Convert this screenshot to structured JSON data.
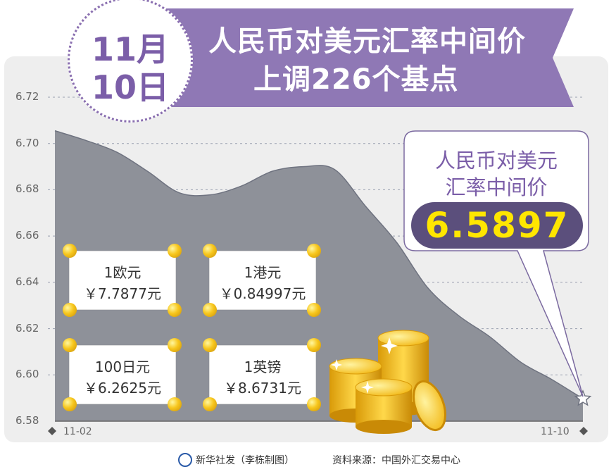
{
  "header": {
    "date_line1": "11月",
    "date_line2": "10日",
    "title_line1": "人民币对美元汇率中间价",
    "title_line2": "上调226个基点",
    "banner_color": "#8f78b5"
  },
  "callout": {
    "label_line1": "人民币对美元",
    "label_line2": "汇率中间价",
    "value": "6.5897",
    "value_color": "#ffe600"
  },
  "cards": [
    {
      "line1": "1欧元",
      "line2": "￥7.7877元"
    },
    {
      "line1": "1港元",
      "line2": "￥0.84997元"
    },
    {
      "line1": "100日元",
      "line2": "￥6.2625元"
    },
    {
      "line1": "1英镑",
      "line2": "￥8.6731元"
    }
  ],
  "footer": {
    "credit": "新华社发（李栋制图）",
    "source": "资料来源：中国外汇交易中心"
  },
  "chart_data": {
    "type": "area",
    "title": "",
    "xlabel": "",
    "ylabel": "",
    "x_tick_labels": [
      "11-02",
      "11-10"
    ],
    "ylim": [
      6.58,
      6.72
    ],
    "y_ticks": [
      "6.58",
      "6.60",
      "6.62",
      "6.64",
      "6.66",
      "6.68",
      "6.70",
      "6.72"
    ],
    "grid": true,
    "area_color": "#8e9199",
    "series": [
      {
        "values": [
          6.7055,
          6.7013,
          6.6962,
          6.6878,
          6.6787,
          6.6778,
          6.6816,
          6.688,
          6.69,
          6.6888,
          6.6729,
          6.6573,
          6.6377,
          6.6256,
          6.6165,
          6.6055,
          6.598,
          6.5897
        ]
      }
    ]
  }
}
